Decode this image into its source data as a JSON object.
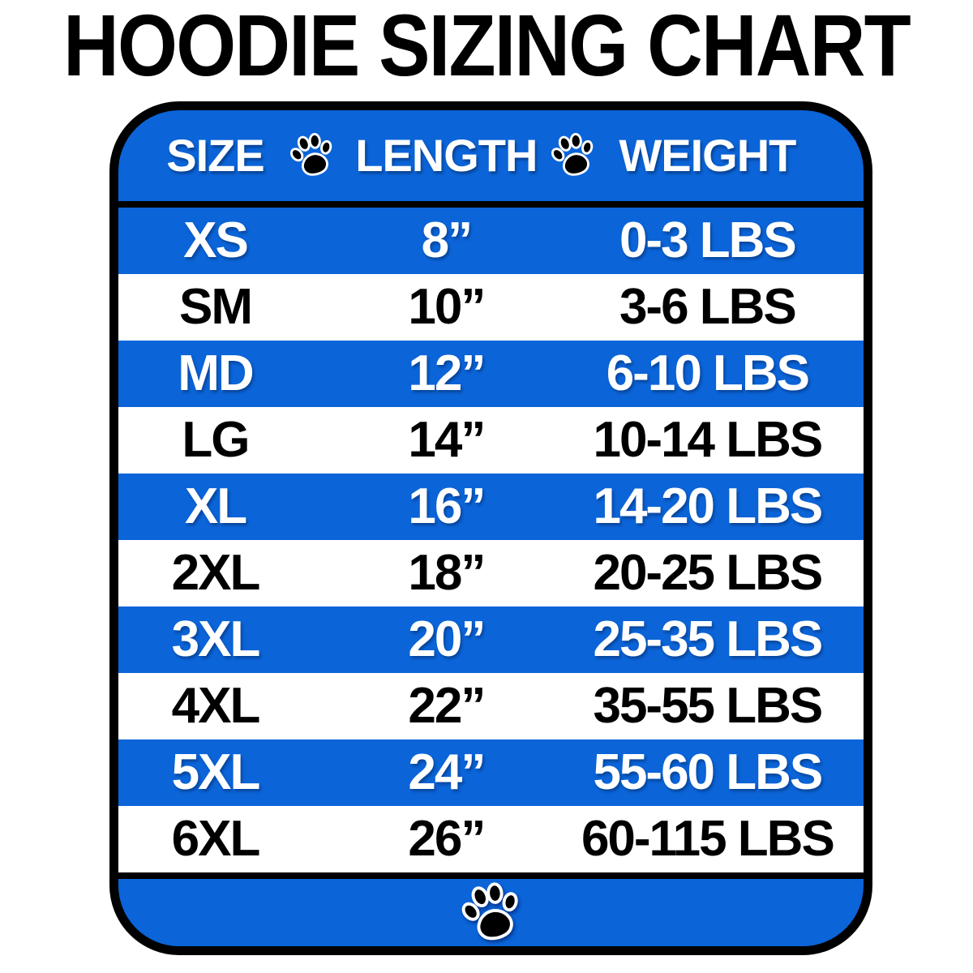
{
  "title": "HOODIE SIZING CHART",
  "colors": {
    "blue": "#0b64d8",
    "white": "#ffffff",
    "black": "#000000"
  },
  "icons": {
    "header_separator": "paw-print-icon",
    "footer": "paw-print-icon"
  },
  "chart_data": {
    "type": "table",
    "title": "HOODIE SIZING CHART",
    "columns": [
      "SIZE",
      "LENGTH",
      "WEIGHT"
    ],
    "rows": [
      [
        "XS",
        "8”",
        "0-3 LBS"
      ],
      [
        "SM",
        "10”",
        "3-6 LBS"
      ],
      [
        "MD",
        "12”",
        "6-10 LBS"
      ],
      [
        "LG",
        "14”",
        "10-14 LBS"
      ],
      [
        "XL",
        "16”",
        "14-20 LBS"
      ],
      [
        "2XL",
        "18”",
        "20-25 LBS"
      ],
      [
        "3XL",
        "20”",
        "25-35 LBS"
      ],
      [
        "4XL",
        "22”",
        "35-55 LBS"
      ],
      [
        "5XL",
        "24”",
        "55-60 LBS"
      ],
      [
        "6XL",
        "26”",
        "60-115 LBS"
      ]
    ],
    "row_striping": [
      "blue",
      "white"
    ],
    "grid": false,
    "legend_position": "none"
  }
}
